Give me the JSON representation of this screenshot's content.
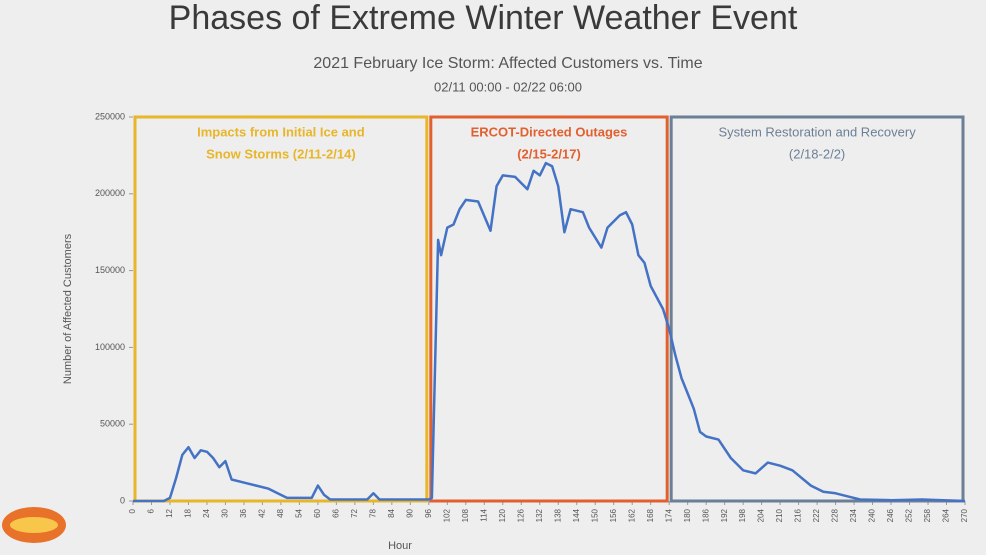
{
  "chart_data": {
    "type": "line",
    "title": "Phases of Extreme Winter Weather Event",
    "subtitle": "2021 February Ice Storm: Affected Customers vs. Time",
    "date_range": "02/11 00:00 - 02/22 06:00",
    "x_label": "Hour",
    "y_label": "Number of Affected Customers",
    "xlim": [
      0,
      270
    ],
    "ylim": [
      0,
      250000
    ],
    "xticks": [
      0,
      6,
      12,
      18,
      24,
      30,
      36,
      42,
      48,
      54,
      60,
      66,
      72,
      78,
      84,
      90,
      96,
      102,
      108,
      114,
      120,
      126,
      132,
      138,
      144,
      150,
      156,
      162,
      168,
      174,
      180,
      186,
      192,
      198,
      204,
      210,
      216,
      222,
      228,
      234,
      240,
      246,
      252,
      258,
      264,
      270
    ],
    "yticks": [
      0,
      50000,
      100000,
      150000,
      200000,
      250000
    ],
    "phases": [
      {
        "lines": [
          "Impacts from Initial Ice and",
          "Snow Storms (2/11-2/14)"
        ],
        "color": "#e8b628",
        "start": 0,
        "end": 96
      },
      {
        "lines": [
          "ERCOT-Directed Outages",
          "(2/15-2/17)"
        ],
        "color": "#e2602f",
        "start": 96,
        "end": 174
      },
      {
        "lines": [
          "System Restoration and Recovery",
          "(2/18-2/2)"
        ],
        "color": "#6b7f96",
        "start": 174,
        "end": 270
      }
    ],
    "series": [
      {
        "name": "Affected Customers",
        "color": "#4472c4",
        "x": [
          0,
          10,
          12,
          14,
          16,
          18,
          20,
          22,
          24,
          26,
          28,
          30,
          32,
          36,
          40,
          44,
          48,
          50,
          58,
          60,
          62,
          64,
          76,
          78,
          80,
          96,
          97,
          99,
          100,
          102,
          104,
          106,
          108,
          112,
          116,
          118,
          120,
          124,
          128,
          130,
          132,
          134,
          136,
          138,
          140,
          142,
          146,
          148,
          152,
          154,
          158,
          160,
          162,
          164,
          166,
          168,
          172,
          174,
          176,
          178,
          180,
          182,
          184,
          186,
          190,
          194,
          198,
          202,
          206,
          210,
          214,
          220,
          224,
          228,
          232,
          236,
          246,
          256,
          270
        ],
        "values": [
          0,
          0,
          2000,
          15000,
          30000,
          35000,
          28000,
          33000,
          32000,
          28000,
          22000,
          26000,
          14000,
          12000,
          10000,
          8000,
          4000,
          2000,
          2000,
          10000,
          4000,
          1000,
          1000,
          5000,
          1000,
          1000,
          2000,
          170000,
          160000,
          178000,
          180000,
          190000,
          196000,
          195000,
          176000,
          205000,
          212000,
          211000,
          203000,
          215000,
          212000,
          220000,
          218000,
          205000,
          175000,
          190000,
          188000,
          178000,
          165000,
          178000,
          186000,
          188000,
          180000,
          160000,
          155000,
          140000,
          125000,
          112000,
          95000,
          80000,
          70000,
          60000,
          45000,
          42000,
          40000,
          28000,
          20000,
          18000,
          25000,
          23000,
          20000,
          10000,
          6000,
          5000,
          3000,
          1000,
          500,
          1000,
          0
        ]
      }
    ]
  }
}
